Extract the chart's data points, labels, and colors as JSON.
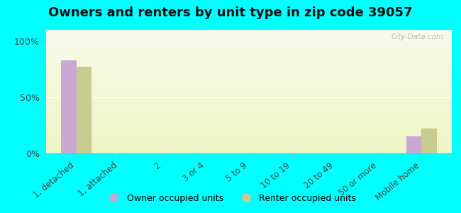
{
  "title": "Owners and renters by unit type in zip code 39057",
  "categories": [
    "1, detached",
    "1, attached",
    "2",
    "3 or 4",
    "5 to 9",
    "10 to 19",
    "20 to 49",
    "50 or more",
    "Mobile home"
  ],
  "owner_values": [
    83,
    0,
    0,
    0,
    0,
    0,
    0,
    0,
    15
  ],
  "renter_values": [
    77,
    0,
    0,
    0,
    0,
    0,
    0,
    0,
    22
  ],
  "owner_color": "#c9a8d4",
  "renter_color": "#c8cc90",
  "background_color": "#00ffff",
  "yticks": [
    0,
    50,
    100
  ],
  "ylabels": [
    "0%",
    "50%",
    "100%"
  ],
  "ylim": [
    0,
    110
  ],
  "bar_width": 0.35,
  "watermark": "City-Data.com",
  "legend_owner": "Owner occupied units",
  "legend_renter": "Renter occupied units",
  "title_fontsize": 13,
  "tick_fontsize": 8.5,
  "ytick_fontsize": 9
}
